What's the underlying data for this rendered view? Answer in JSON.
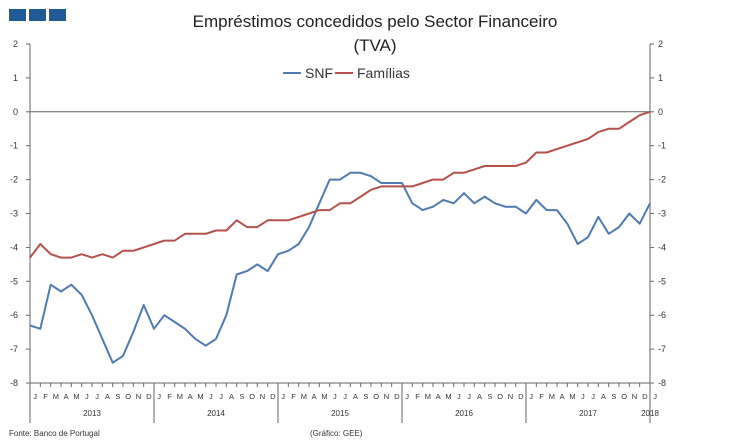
{
  "header": {
    "logo_icon": "gee-logo-icon"
  },
  "footer": {
    "source": "Fonte: Banco de Portugal",
    "credit": "(Gráfico: GEE)"
  },
  "chart_data": {
    "type": "line",
    "title": "Empréstimos concedidos pelo Sector Financeiro",
    "subtitle": "(TVA)",
    "xlabel": "",
    "ylabel": "",
    "ylim": [
      -8,
      2
    ],
    "yticks": [
      2,
      1,
      0,
      -1,
      -2,
      -3,
      -4,
      -5,
      -6,
      -7,
      -8
    ],
    "grid": false,
    "legend": "top-center",
    "month_labels": [
      "J",
      "F",
      "M",
      "A",
      "M",
      "J",
      "J",
      "A",
      "S",
      "O",
      "N",
      "D",
      "J",
      "F",
      "M",
      "A",
      "M",
      "J",
      "J",
      "A",
      "S",
      "O",
      "N",
      "D",
      "J",
      "F",
      "M",
      "A",
      "M",
      "J",
      "J",
      "A",
      "S",
      "O",
      "N",
      "D",
      "J",
      "F",
      "M",
      "A",
      "M",
      "J",
      "J",
      "A",
      "S",
      "O",
      "N",
      "D",
      "J",
      "F",
      "M",
      "A",
      "M",
      "J",
      "J",
      "A",
      "S",
      "O",
      "N",
      "D",
      "J"
    ],
    "year_labels": [
      "2013",
      "2014",
      "2015",
      "2016",
      "2017",
      "2018"
    ],
    "series": [
      {
        "name": "SNF",
        "color": "#4f7bb0",
        "values": [
          -6.3,
          -6.4,
          -5.1,
          -5.3,
          -5.1,
          -5.4,
          -6.0,
          -6.7,
          -7.4,
          -7.2,
          -6.5,
          -5.7,
          -6.4,
          -6.0,
          -6.2,
          -6.4,
          -6.7,
          -6.9,
          -6.7,
          -6.0,
          -4.8,
          -4.7,
          -4.5,
          -4.7,
          -4.2,
          -4.1,
          -3.9,
          -3.4,
          -2.7,
          -2.0,
          -2.0,
          -1.8,
          -1.8,
          -1.9,
          -2.1,
          -2.1,
          -2.1,
          -2.7,
          -2.9,
          -2.8,
          -2.6,
          -2.7,
          -2.4,
          -2.7,
          -2.5,
          -2.7,
          -2.8,
          -2.8,
          -3.0,
          -2.6,
          -2.9,
          -2.9,
          -3.3,
          -3.9,
          -3.7,
          -3.1,
          -3.6,
          -3.4,
          -3.0,
          -3.3,
          -2.7
        ]
      },
      {
        "name": "Famílias",
        "color": "#b5504b",
        "values": [
          -4.3,
          -3.9,
          -4.2,
          -4.3,
          -4.3,
          -4.2,
          -4.3,
          -4.2,
          -4.3,
          -4.1,
          -4.1,
          -4.0,
          -3.9,
          -3.8,
          -3.8,
          -3.6,
          -3.6,
          -3.6,
          -3.5,
          -3.5,
          -3.2,
          -3.4,
          -3.4,
          -3.2,
          -3.2,
          -3.2,
          -3.1,
          -3.0,
          -2.9,
          -2.9,
          -2.7,
          -2.7,
          -2.5,
          -2.3,
          -2.2,
          -2.2,
          -2.2,
          -2.2,
          -2.1,
          -2.0,
          -2.0,
          -1.8,
          -1.8,
          -1.7,
          -1.6,
          -1.6,
          -1.6,
          -1.6,
          -1.5,
          -1.2,
          -1.2,
          -1.1,
          -1.0,
          -0.9,
          -0.8,
          -0.6,
          -0.5,
          -0.5,
          -0.3,
          -0.1,
          0.0
        ]
      }
    ]
  }
}
